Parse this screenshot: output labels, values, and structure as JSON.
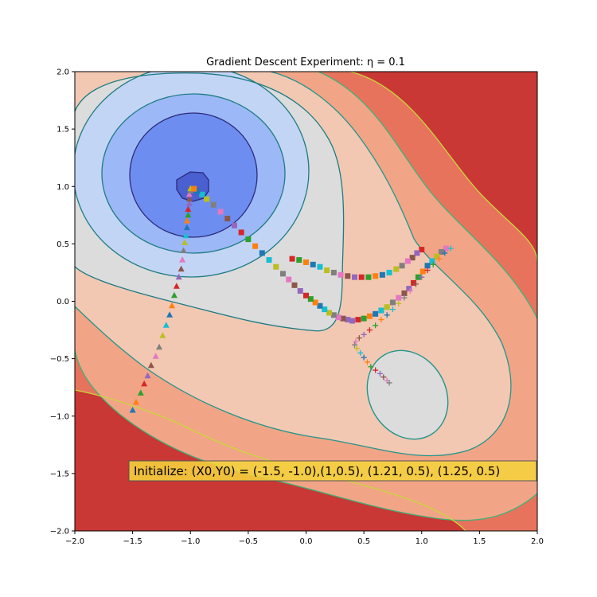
{
  "chart_data": {
    "type": "scatter",
    "title": "Gradient Descent Experiment: η = 0.1",
    "xlabel": "",
    "ylabel": "",
    "xlim": [
      -2.0,
      2.0
    ],
    "ylim": [
      -2.0,
      2.0
    ],
    "x_ticks": [
      "−2.0",
      "−1.5",
      "−1.0",
      "−0.5",
      "0.0",
      "0.5",
      "1.0",
      "1.5",
      "2.0"
    ],
    "y_ticks": [
      "2.0",
      "1.5",
      "1.0",
      "0.5",
      "0.0",
      "−0.5",
      "−1.0",
      "−1.5",
      "−2.0"
    ],
    "annotation": "Initialize: (X0,Y0)  = (-1.5, -1.0),(1,0.5), (1.21, 0.5), (1.25, 0.5)",
    "grid": false,
    "series": [
      {
        "marker": "triangle",
        "points": [
          [
            -1.5,
            -0.95
          ],
          [
            -1.47,
            -0.88
          ],
          [
            -1.43,
            -0.8
          ],
          [
            -1.4,
            -0.72
          ],
          [
            -1.37,
            -0.65
          ],
          [
            -1.34,
            -0.56
          ],
          [
            -1.3,
            -0.48
          ],
          [
            -1.27,
            -0.4
          ],
          [
            -1.24,
            -0.3
          ],
          [
            -1.21,
            -0.21
          ],
          [
            -1.18,
            -0.12
          ],
          [
            -1.16,
            -0.04
          ],
          [
            -1.14,
            0.05
          ],
          [
            -1.12,
            0.13
          ],
          [
            -1.1,
            0.21
          ],
          [
            -1.08,
            0.28
          ],
          [
            -1.07,
            0.36
          ],
          [
            -1.06,
            0.44
          ],
          [
            -1.05,
            0.51
          ],
          [
            -1.04,
            0.57
          ],
          [
            -1.03,
            0.64
          ],
          [
            -1.03,
            0.7
          ],
          [
            -1.02,
            0.75
          ],
          [
            -1.02,
            0.8
          ],
          [
            -1.01,
            0.85
          ],
          [
            -1.01,
            0.89
          ],
          [
            -1.01,
            0.93
          ],
          [
            -1.0,
            0.96
          ],
          [
            -1.0,
            0.98
          ]
        ]
      },
      {
        "marker": "square",
        "points": [
          [
            1.0,
            0.45
          ],
          [
            0.96,
            0.42
          ],
          [
            0.92,
            0.38
          ],
          [
            0.88,
            0.35
          ],
          [
            0.83,
            0.31
          ],
          [
            0.78,
            0.28
          ],
          [
            0.72,
            0.25
          ],
          [
            0.66,
            0.23
          ],
          [
            0.6,
            0.22
          ],
          [
            0.54,
            0.21
          ],
          [
            0.48,
            0.21
          ],
          [
            0.42,
            0.21
          ],
          [
            0.36,
            0.22
          ],
          [
            0.3,
            0.23
          ],
          [
            0.24,
            0.25
          ],
          [
            0.18,
            0.27
          ],
          [
            0.12,
            0.3
          ],
          [
            0.06,
            0.32
          ],
          [
            0.0,
            0.34
          ],
          [
            -0.06,
            0.36
          ],
          [
            -0.12,
            0.37
          ],
          [
            0.36,
            -0.16
          ],
          [
            0.32,
            -0.15
          ],
          [
            0.28,
            -0.14
          ],
          [
            0.24,
            -0.12
          ],
          [
            0.2,
            -0.1
          ],
          [
            0.16,
            -0.07
          ],
          [
            0.12,
            -0.04
          ],
          [
            0.08,
            -0.01
          ],
          [
            0.04,
            0.02
          ],
          [
            0.0,
            0.05
          ],
          [
            -0.05,
            0.09
          ],
          [
            -0.1,
            0.14
          ],
          [
            -0.15,
            0.19
          ],
          [
            -0.2,
            0.24
          ],
          [
            -0.26,
            0.3
          ],
          [
            -0.32,
            0.36
          ],
          [
            -0.38,
            0.42
          ],
          [
            -0.44,
            0.48
          ],
          [
            -0.5,
            0.54
          ],
          [
            -0.56,
            0.6
          ],
          [
            -0.62,
            0.66
          ],
          [
            -0.68,
            0.72
          ],
          [
            -0.74,
            0.78
          ],
          [
            -0.8,
            0.84
          ],
          [
            -0.86,
            0.89
          ],
          [
            -0.9,
            0.93
          ],
          [
            -0.94,
            0.96
          ],
          [
            -0.97,
            0.98
          ]
        ]
      },
      {
        "marker": "square",
        "points": [
          [
            1.21,
            0.46
          ],
          [
            1.17,
            0.43
          ],
          [
            1.13,
            0.39
          ],
          [
            1.09,
            0.35
          ],
          [
            1.05,
            0.31
          ],
          [
            1.01,
            0.26
          ],
          [
            0.97,
            0.21
          ],
          [
            0.93,
            0.16
          ],
          [
            0.89,
            0.11
          ],
          [
            0.85,
            0.07
          ],
          [
            0.8,
            0.03
          ],
          [
            0.75,
            -0.01
          ],
          [
            0.7,
            -0.05
          ],
          [
            0.65,
            -0.08
          ],
          [
            0.6,
            -0.11
          ],
          [
            0.55,
            -0.13
          ],
          [
            0.5,
            -0.15
          ],
          [
            0.45,
            -0.16
          ],
          [
            0.4,
            -0.17
          ]
        ]
      },
      {
        "marker": "plus",
        "points": [
          [
            1.25,
            0.46
          ],
          [
            1.2,
            0.42
          ],
          [
            1.15,
            0.37
          ],
          [
            1.1,
            0.32
          ],
          [
            1.05,
            0.27
          ],
          [
            1.0,
            0.21
          ],
          [
            0.95,
            0.15
          ],
          [
            0.9,
            0.09
          ],
          [
            0.85,
            0.03
          ],
          [
            0.8,
            -0.02
          ],
          [
            0.75,
            -0.07
          ],
          [
            0.7,
            -0.12
          ],
          [
            0.65,
            -0.16
          ],
          [
            0.6,
            -0.21
          ],
          [
            0.55,
            -0.25
          ],
          [
            0.5,
            -0.29
          ],
          [
            0.46,
            -0.32
          ],
          [
            0.43,
            -0.35
          ],
          [
            0.42,
            -0.38
          ],
          [
            0.44,
            -0.41
          ],
          [
            0.47,
            -0.45
          ],
          [
            0.5,
            -0.49
          ],
          [
            0.53,
            -0.53
          ],
          [
            0.56,
            -0.57
          ],
          [
            0.6,
            -0.6
          ],
          [
            0.64,
            -0.63
          ],
          [
            0.67,
            -0.66
          ],
          [
            0.7,
            -0.69
          ],
          [
            0.72,
            -0.71
          ]
        ]
      }
    ],
    "colors": {
      "cycle": [
        "#1f77b4",
        "#ff7f0e",
        "#2ca02c",
        "#d62728",
        "#9467bd",
        "#8c564b",
        "#e377c2",
        "#7f7f7f",
        "#bcbd22",
        "#17becf"
      ],
      "annotation_box": "#f5d23c",
      "contour_fills": [
        "#4a5fd0",
        "#6d8ef0",
        "#9cb8f7",
        "#c3d5f5",
        "#dcdcdc",
        "#f2c8b3",
        "#f2a486",
        "#e8735d",
        "#c93834"
      ],
      "contour_lines": [
        "#2c2a7a",
        "#1e7c82",
        "#22958a",
        "#3eb27a",
        "#c8d83a"
      ]
    }
  }
}
